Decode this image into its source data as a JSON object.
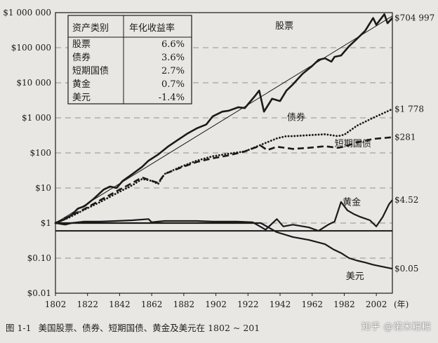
{
  "chart_data": {
    "type": "line",
    "y_scale": "log",
    "ylim": [
      0.01,
      1000000
    ],
    "xlim": [
      1802,
      2012
    ],
    "y_ticks": [
      {
        "value": 1000000,
        "label": "$1 000 000"
      },
      {
        "value": 100000,
        "label": "$100 000"
      },
      {
        "value": 10000,
        "label": "$10 000"
      },
      {
        "value": 1000,
        "label": "$1 000"
      },
      {
        "value": 100,
        "label": "$100"
      },
      {
        "value": 10,
        "label": "$10"
      },
      {
        "value": 1,
        "label": "$1"
      },
      {
        "value": 0.1,
        "label": "$0.10"
      },
      {
        "value": 0.01,
        "label": "$0.01"
      }
    ],
    "x_ticks": [
      "1802",
      "1822",
      "1842",
      "1862",
      "1882",
      "1902",
      "1922",
      "1942",
      "1962",
      "1982",
      "2002"
    ],
    "x_unit": "(年)",
    "grid": "dashed horizontal",
    "series": [
      {
        "name": "股票",
        "end_label": "$704 997",
        "style": "solid-bold",
        "points": [
          [
            1802,
            1
          ],
          [
            1808,
            1.3
          ],
          [
            1812,
            1.7
          ],
          [
            1816,
            2.6
          ],
          [
            1820,
            3
          ],
          [
            1826,
            5
          ],
          [
            1832,
            9
          ],
          [
            1836,
            11
          ],
          [
            1840,
            10
          ],
          [
            1844,
            16
          ],
          [
            1850,
            25
          ],
          [
            1856,
            40
          ],
          [
            1860,
            60
          ],
          [
            1866,
            90
          ],
          [
            1872,
            150
          ],
          [
            1878,
            230
          ],
          [
            1884,
            350
          ],
          [
            1890,
            500
          ],
          [
            1896,
            650
          ],
          [
            1900,
            1100
          ],
          [
            1906,
            1500
          ],
          [
            1910,
            1600
          ],
          [
            1916,
            2000
          ],
          [
            1920,
            1900
          ],
          [
            1926,
            4000
          ],
          [
            1929,
            6000
          ],
          [
            1932,
            1500
          ],
          [
            1937,
            3500
          ],
          [
            1942,
            3000
          ],
          [
            1946,
            6000
          ],
          [
            1950,
            9000
          ],
          [
            1956,
            18000
          ],
          [
            1962,
            30000
          ],
          [
            1966,
            45000
          ],
          [
            1970,
            50000
          ],
          [
            1974,
            40000
          ],
          [
            1976,
            55000
          ],
          [
            1980,
            60000
          ],
          [
            1985,
            110000
          ],
          [
            1990,
            180000
          ],
          [
            1995,
            300000
          ],
          [
            2000,
            700000
          ],
          [
            2002,
            450000
          ],
          [
            2007,
            900000
          ],
          [
            2009,
            500000
          ],
          [
            2012,
            704997
          ]
        ]
      },
      {
        "name": "",
        "style": "thin-trend",
        "points": [
          [
            1802,
            1
          ],
          [
            2012,
            800000
          ]
        ]
      },
      {
        "name": "债券",
        "end_label": "$1 778",
        "style": "dotted",
        "points": [
          [
            1802,
            1
          ],
          [
            1810,
            1.4
          ],
          [
            1820,
            2.4
          ],
          [
            1830,
            4
          ],
          [
            1840,
            7
          ],
          [
            1850,
            12
          ],
          [
            1856,
            18
          ],
          [
            1862,
            16
          ],
          [
            1866,
            13
          ],
          [
            1870,
            25
          ],
          [
            1880,
            40
          ],
          [
            1890,
            60
          ],
          [
            1900,
            80
          ],
          [
            1910,
            95
          ],
          [
            1920,
            110
          ],
          [
            1930,
            170
          ],
          [
            1940,
            260
          ],
          [
            1946,
            300
          ],
          [
            1950,
            300
          ],
          [
            1960,
            320
          ],
          [
            1970,
            340
          ],
          [
            1978,
            300
          ],
          [
            1982,
            330
          ],
          [
            1990,
            600
          ],
          [
            2000,
            1000
          ],
          [
            2012,
            1778
          ]
        ]
      },
      {
        "name": "短期国债",
        "end_label": "$281",
        "style": "dashed",
        "points": [
          [
            1802,
            1
          ],
          [
            1810,
            1.5
          ],
          [
            1820,
            2.5
          ],
          [
            1830,
            4.5
          ],
          [
            1840,
            8
          ],
          [
            1850,
            14
          ],
          [
            1856,
            20
          ],
          [
            1862,
            16
          ],
          [
            1866,
            14
          ],
          [
            1870,
            25
          ],
          [
            1880,
            38
          ],
          [
            1890,
            55
          ],
          [
            1900,
            70
          ],
          [
            1910,
            85
          ],
          [
            1920,
            110
          ],
          [
            1926,
            140
          ],
          [
            1930,
            160
          ],
          [
            1934,
            120
          ],
          [
            1940,
            150
          ],
          [
            1950,
            130
          ],
          [
            1960,
            140
          ],
          [
            1970,
            155
          ],
          [
            1978,
            140
          ],
          [
            1982,
            150
          ],
          [
            1990,
            200
          ],
          [
            2000,
            250
          ],
          [
            2012,
            281
          ]
        ]
      },
      {
        "name": "黄金",
        "end_label": "$4.52",
        "style": "solid",
        "points": [
          [
            1802,
            1
          ],
          [
            1808,
            0.9
          ],
          [
            1812,
            1
          ],
          [
            1820,
            1.1
          ],
          [
            1830,
            1.1
          ],
          [
            1840,
            1.15
          ],
          [
            1850,
            1.2
          ],
          [
            1860,
            1.3
          ],
          [
            1862,
            1.05
          ],
          [
            1866,
            1.1
          ],
          [
            1870,
            1.15
          ],
          [
            1880,
            1.15
          ],
          [
            1890,
            1.15
          ],
          [
            1900,
            1.1
          ],
          [
            1915,
            1.1
          ],
          [
            1925,
            1.05
          ],
          [
            1933,
            0.65
          ],
          [
            1940,
            1.3
          ],
          [
            1944,
            0.8
          ],
          [
            1950,
            0.9
          ],
          [
            1960,
            0.75
          ],
          [
            1966,
            0.6
          ],
          [
            1972,
            0.9
          ],
          [
            1976,
            1.1
          ],
          [
            1980,
            4
          ],
          [
            1984,
            2.3
          ],
          [
            1988,
            1.8
          ],
          [
            1992,
            1.5
          ],
          [
            1998,
            1.2
          ],
          [
            2002,
            0.8
          ],
          [
            2006,
            1.5
          ],
          [
            2010,
            3.5
          ],
          [
            2012,
            4.52
          ]
        ]
      },
      {
        "name": "美元",
        "end_label": "$0.05",
        "style": "solid",
        "points": [
          [
            1802,
            1
          ],
          [
            1930,
            1
          ],
          [
            1940,
            0.55
          ],
          [
            1950,
            0.4
          ],
          [
            1960,
            0.33
          ],
          [
            1970,
            0.25
          ],
          [
            1975,
            0.18
          ],
          [
            1980,
            0.14
          ],
          [
            1985,
            0.1
          ],
          [
            1990,
            0.085
          ],
          [
            1995,
            0.075
          ],
          [
            2000,
            0.065
          ],
          [
            2005,
            0.058
          ],
          [
            2012,
            0.05
          ]
        ]
      },
      {
        "name": "",
        "style": "reference-line",
        "points": [
          [
            1802,
            0.6
          ],
          [
            2012,
            0.6
          ]
        ]
      }
    ],
    "table": {
      "headers": [
        "资产类别",
        "年化收益率"
      ],
      "rows": [
        [
          "股票",
          "6.6%"
        ],
        [
          "债券",
          "3.6%"
        ],
        [
          "短期国债",
          "2.7%"
        ],
        [
          "黄金",
          "0.7%"
        ],
        [
          "美元",
          "-1.4%"
        ]
      ]
    }
  },
  "caption": {
    "number": "图 1-1",
    "text": "美国股票、债券、短期国债、黄金及美元在 1802 ~ 201"
  },
  "watermark": "知乎 @诺米粑粑",
  "colors": {
    "ink": "#1a1a1a",
    "paper": "#e9e7e3",
    "grid": "#777777"
  }
}
